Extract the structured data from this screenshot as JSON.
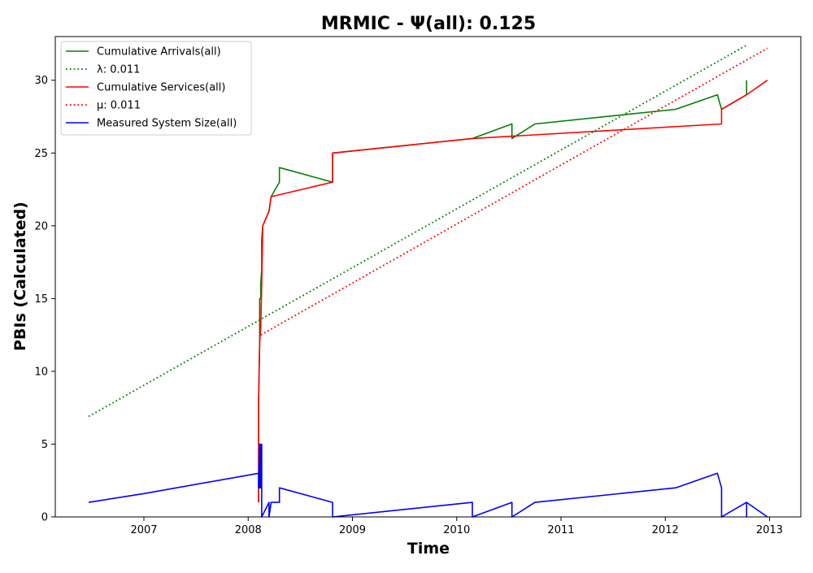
{
  "chart_data": {
    "type": "line",
    "title": "MRMIC -  Ψ(all): 0.125",
    "xlabel": "Time",
    "ylabel": "PBIs (Calculated)",
    "xlim": [
      2006.15,
      2013.3
    ],
    "ylim": [
      0,
      33
    ],
    "x_ticks": [
      {
        "value": 2007,
        "label": "2007"
      },
      {
        "value": 2008,
        "label": "2008"
      },
      {
        "value": 2009,
        "label": "2009"
      },
      {
        "value": 2010,
        "label": "2010"
      },
      {
        "value": 2011,
        "label": "2011"
      },
      {
        "value": 2012,
        "label": "2012"
      },
      {
        "value": 2013,
        "label": "2013"
      }
    ],
    "y_ticks": [
      0,
      5,
      10,
      15,
      20,
      25,
      30
    ],
    "grid": false,
    "legend_position": "top-left",
    "series": [
      {
        "name": "Cumulative Arrivals(all)",
        "color": "#008000",
        "style": "solid",
        "points": [
          [
            2008.1,
            1
          ],
          [
            2008.1,
            8
          ],
          [
            2008.11,
            12
          ],
          [
            2008.11,
            15
          ],
          [
            2008.12,
            15
          ],
          [
            2008.12,
            16
          ],
          [
            2008.13,
            17
          ],
          [
            2008.13,
            19
          ],
          [
            2008.14,
            20
          ],
          [
            2008.2,
            21
          ],
          [
            2008.22,
            22
          ],
          [
            2008.3,
            23
          ],
          [
            2008.3,
            24
          ],
          [
            2008.81,
            23
          ],
          [
            2008.81,
            25
          ],
          [
            2010.15,
            26
          ],
          [
            2010.53,
            27
          ],
          [
            2010.53,
            26
          ],
          [
            2010.75,
            27
          ],
          [
            2012.1,
            28
          ],
          [
            2012.5,
            29
          ],
          [
            2012.54,
            28
          ],
          [
            2012.78,
            29
          ],
          [
            2012.78,
            30
          ]
        ]
      },
      {
        "name": "λ: 0.011",
        "color": "#008000",
        "style": "dotted",
        "points": [
          [
            2006.47,
            6.9
          ],
          [
            2012.78,
            32.4
          ]
        ]
      },
      {
        "name": "Cumulative Services(all)",
        "color": "#ff0000",
        "style": "solid",
        "points": [
          [
            2008.1,
            1
          ],
          [
            2008.1,
            8
          ],
          [
            2008.11,
            12
          ],
          [
            2008.12,
            13
          ],
          [
            2008.13,
            16
          ],
          [
            2008.14,
            20
          ],
          [
            2008.2,
            21
          ],
          [
            2008.22,
            22
          ],
          [
            2008.81,
            23
          ],
          [
            2008.81,
            25
          ],
          [
            2010.15,
            26
          ],
          [
            2012.54,
            27
          ],
          [
            2012.54,
            28
          ],
          [
            2012.78,
            29
          ],
          [
            2012.98,
            30
          ]
        ]
      },
      {
        "name": "μ: 0.011",
        "color": "#ff0000",
        "style": "dotted",
        "points": [
          [
            2008.12,
            12.5
          ],
          [
            2012.98,
            32.2
          ]
        ]
      },
      {
        "name": "Measured System Size(all)",
        "color": "#0000ff",
        "style": "solid",
        "points": [
          [
            2006.47,
            1
          ],
          [
            2007.0,
            1.6
          ],
          [
            2008.1,
            3
          ],
          [
            2008.1,
            2
          ],
          [
            2008.11,
            5
          ],
          [
            2008.11,
            2
          ],
          [
            2008.12,
            5
          ],
          [
            2008.12,
            2
          ],
          [
            2008.13,
            5
          ],
          [
            2008.13,
            0
          ],
          [
            2008.2,
            1
          ],
          [
            2008.2,
            0
          ],
          [
            2008.22,
            1
          ],
          [
            2008.3,
            1
          ],
          [
            2008.3,
            2
          ],
          [
            2008.81,
            1
          ],
          [
            2008.81,
            0
          ],
          [
            2010.15,
            1
          ],
          [
            2010.15,
            0
          ],
          [
            2010.53,
            1
          ],
          [
            2010.53,
            0
          ],
          [
            2010.75,
            1
          ],
          [
            2012.1,
            2
          ],
          [
            2012.5,
            3
          ],
          [
            2012.54,
            2
          ],
          [
            2012.54,
            0
          ],
          [
            2012.78,
            1
          ],
          [
            2012.78,
            0
          ],
          [
            2012.78,
            1
          ],
          [
            2012.98,
            0
          ]
        ]
      }
    ]
  }
}
